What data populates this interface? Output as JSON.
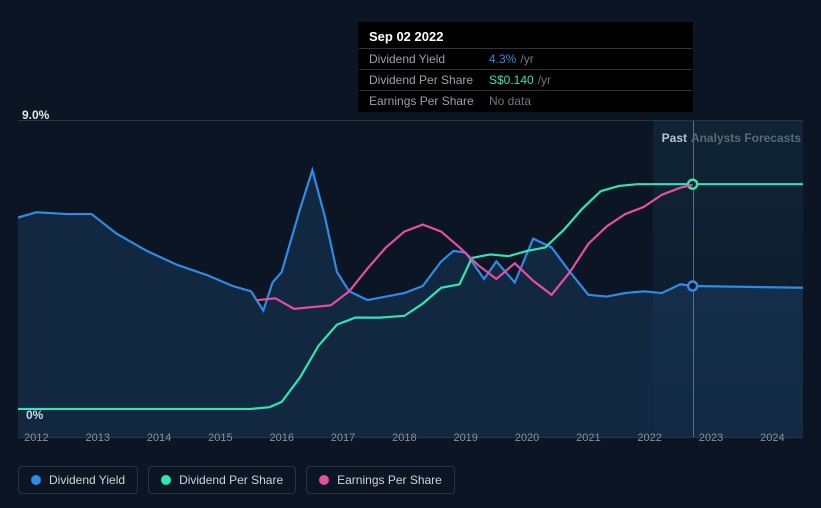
{
  "chart": {
    "type": "line",
    "background_color": "#0b1523",
    "grid_color": "#2a3544",
    "text_color": "#8a9099",
    "ylim": [
      0,
      9
    ],
    "y_top_label": "9.0%",
    "y_bottom_label": "0%",
    "x_years": [
      2012,
      2013,
      2014,
      2015,
      2016,
      2017,
      2018,
      2019,
      2020,
      2021,
      2022,
      2023,
      2024
    ],
    "past_label": "Past",
    "forecast_label": "Analysts Forecasts",
    "past_color": "#e8e8e8",
    "forecast_color": "#6a737d",
    "present_x": 2022.7,
    "cursor_x": 2022.7,
    "series": {
      "dividend_yield": {
        "label": "Dividend Yield",
        "color": "#2e8be6",
        "area": true,
        "points": [
          [
            2011.7,
            6.25
          ],
          [
            2012.0,
            6.4
          ],
          [
            2012.5,
            6.35
          ],
          [
            2012.9,
            6.35
          ],
          [
            2013.3,
            5.8
          ],
          [
            2013.8,
            5.3
          ],
          [
            2014.3,
            4.9
          ],
          [
            2014.8,
            4.6
          ],
          [
            2015.2,
            4.3
          ],
          [
            2015.5,
            4.15
          ],
          [
            2015.7,
            3.6
          ],
          [
            2015.85,
            4.4
          ],
          [
            2016.0,
            4.7
          ],
          [
            2016.3,
            6.5
          ],
          [
            2016.5,
            7.6
          ],
          [
            2016.7,
            6.3
          ],
          [
            2016.9,
            4.7
          ],
          [
            2017.1,
            4.15
          ],
          [
            2017.4,
            3.9
          ],
          [
            2017.7,
            4.0
          ],
          [
            2018.0,
            4.1
          ],
          [
            2018.3,
            4.3
          ],
          [
            2018.6,
            5.0
          ],
          [
            2018.8,
            5.3
          ],
          [
            2019.0,
            5.25
          ],
          [
            2019.3,
            4.5
          ],
          [
            2019.5,
            5.0
          ],
          [
            2019.8,
            4.4
          ],
          [
            2020.1,
            5.65
          ],
          [
            2020.4,
            5.4
          ],
          [
            2020.7,
            4.7
          ],
          [
            2021.0,
            4.05
          ],
          [
            2021.3,
            4.0
          ],
          [
            2021.6,
            4.1
          ],
          [
            2021.9,
            4.15
          ],
          [
            2022.2,
            4.1
          ],
          [
            2022.5,
            4.35
          ],
          [
            2022.7,
            4.3
          ],
          [
            2024.5,
            4.25
          ]
        ],
        "marker_at": [
          2022.7,
          4.3
        ]
      },
      "dividend_per_share": {
        "label": "Dividend Per Share",
        "color": "#2ee6b8",
        "area": false,
        "points": [
          [
            2011.7,
            0.8
          ],
          [
            2015.0,
            0.8
          ],
          [
            2015.5,
            0.8
          ],
          [
            2015.8,
            0.85
          ],
          [
            2016.0,
            1.0
          ],
          [
            2016.3,
            1.7
          ],
          [
            2016.6,
            2.6
          ],
          [
            2016.9,
            3.2
          ],
          [
            2017.2,
            3.4
          ],
          [
            2017.6,
            3.4
          ],
          [
            2018.0,
            3.45
          ],
          [
            2018.3,
            3.8
          ],
          [
            2018.6,
            4.25
          ],
          [
            2018.9,
            4.35
          ],
          [
            2019.1,
            5.1
          ],
          [
            2019.4,
            5.2
          ],
          [
            2019.7,
            5.15
          ],
          [
            2020.0,
            5.3
          ],
          [
            2020.3,
            5.4
          ],
          [
            2020.6,
            5.9
          ],
          [
            2020.9,
            6.5
          ],
          [
            2021.2,
            7.0
          ],
          [
            2021.5,
            7.15
          ],
          [
            2021.8,
            7.2
          ],
          [
            2022.1,
            7.2
          ],
          [
            2022.5,
            7.2
          ],
          [
            2022.7,
            7.2
          ],
          [
            2024.5,
            7.2
          ]
        ],
        "marker_at": [
          2022.7,
          7.2
        ]
      },
      "earnings_per_share": {
        "label": "Earnings Per Share",
        "color": "#e64fa0",
        "area": false,
        "points": [
          [
            2015.6,
            3.9
          ],
          [
            2015.9,
            3.95
          ],
          [
            2016.2,
            3.65
          ],
          [
            2016.5,
            3.7
          ],
          [
            2016.8,
            3.75
          ],
          [
            2017.1,
            4.15
          ],
          [
            2017.4,
            4.8
          ],
          [
            2017.7,
            5.4
          ],
          [
            2018.0,
            5.85
          ],
          [
            2018.3,
            6.05
          ],
          [
            2018.6,
            5.85
          ],
          [
            2018.9,
            5.4
          ],
          [
            2019.2,
            4.9
          ],
          [
            2019.5,
            4.5
          ],
          [
            2019.8,
            4.95
          ],
          [
            2020.1,
            4.45
          ],
          [
            2020.4,
            4.05
          ],
          [
            2020.7,
            4.7
          ],
          [
            2021.0,
            5.5
          ],
          [
            2021.3,
            6.0
          ],
          [
            2021.6,
            6.35
          ],
          [
            2021.9,
            6.55
          ],
          [
            2022.2,
            6.9
          ],
          [
            2022.5,
            7.1
          ],
          [
            2022.7,
            7.18
          ]
        ]
      }
    }
  },
  "tooltip": {
    "date": "Sep 02 2022",
    "rows": [
      {
        "label": "Dividend Yield",
        "value": "4.3%",
        "unit": "/yr",
        "value_color": "#2e8be6"
      },
      {
        "label": "Dividend Per Share",
        "value": "S$0.140",
        "unit": "/yr",
        "value_color": "#2ee6b8"
      },
      {
        "label": "Earnings Per Share",
        "value": "No data",
        "unit": "",
        "value_color": "#707680"
      }
    ]
  },
  "legend": [
    {
      "label": "Dividend Yield",
      "color": "#2e8be6"
    },
    {
      "label": "Dividend Per Share",
      "color": "#2ee6b8"
    },
    {
      "label": "Earnings Per Share",
      "color": "#e64fa0"
    }
  ]
}
